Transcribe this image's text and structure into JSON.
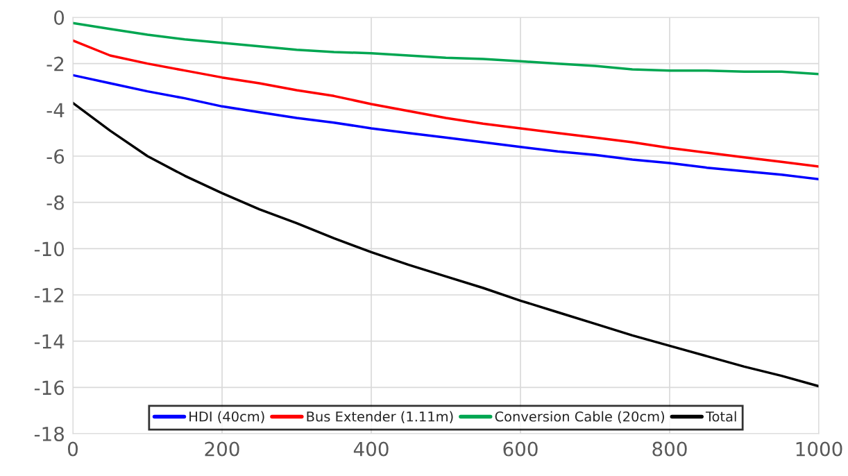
{
  "chart_data": {
    "type": "line",
    "x": [
      0,
      50,
      100,
      150,
      200,
      250,
      300,
      350,
      400,
      450,
      500,
      550,
      600,
      650,
      700,
      750,
      800,
      850,
      900,
      950,
      1000
    ],
    "series": [
      {
        "name": "HDI (40cm)",
        "color": "#0000ff",
        "values": [
          -2.5,
          -2.85,
          -3.2,
          -3.5,
          -3.85,
          -4.1,
          -4.35,
          -4.55,
          -4.8,
          -5.0,
          -5.2,
          -5.4,
          -5.6,
          -5.8,
          -5.95,
          -6.15,
          -6.3,
          -6.5,
          -6.65,
          -6.8,
          -7.0
        ]
      },
      {
        "name": "Bus Extender (1.11m)",
        "color": "#ff0000",
        "values": [
          -1.0,
          -1.65,
          -2.0,
          -2.3,
          -2.6,
          -2.85,
          -3.15,
          -3.4,
          -3.75,
          -4.05,
          -4.35,
          -4.6,
          -4.8,
          -5.0,
          -5.2,
          -5.4,
          -5.65,
          -5.85,
          -6.05,
          -6.25,
          -6.45
        ]
      },
      {
        "name": "Conversion Cable (20cm)",
        "color": "#00a651",
        "values": [
          -0.25,
          -0.5,
          -0.75,
          -0.95,
          -1.1,
          -1.25,
          -1.4,
          -1.5,
          -1.55,
          -1.65,
          -1.75,
          -1.8,
          -1.9,
          -2.0,
          -2.1,
          -2.25,
          -2.3,
          -2.3,
          -2.35,
          -2.35,
          -2.45
        ]
      },
      {
        "name": "Total",
        "color": "#000000",
        "values": [
          -3.7,
          -4.9,
          -6.0,
          -6.85,
          -7.6,
          -8.3,
          -8.9,
          -9.55,
          -10.15,
          -10.7,
          -11.2,
          -11.7,
          -12.25,
          -12.75,
          -13.25,
          -13.75,
          -14.2,
          -14.65,
          -15.1,
          -15.5,
          -15.95
        ]
      }
    ],
    "xlim": [
      0,
      1000
    ],
    "xticks": [
      0,
      200,
      400,
      600,
      800,
      1000
    ],
    "ylim": [
      -18,
      0
    ],
    "yticks": [
      -18,
      -16,
      -14,
      -12,
      -10,
      -8,
      -6,
      -4,
      -2,
      0
    ],
    "grid": true,
    "legend": "bottom",
    "marker": "none",
    "line_style": "solid"
  }
}
